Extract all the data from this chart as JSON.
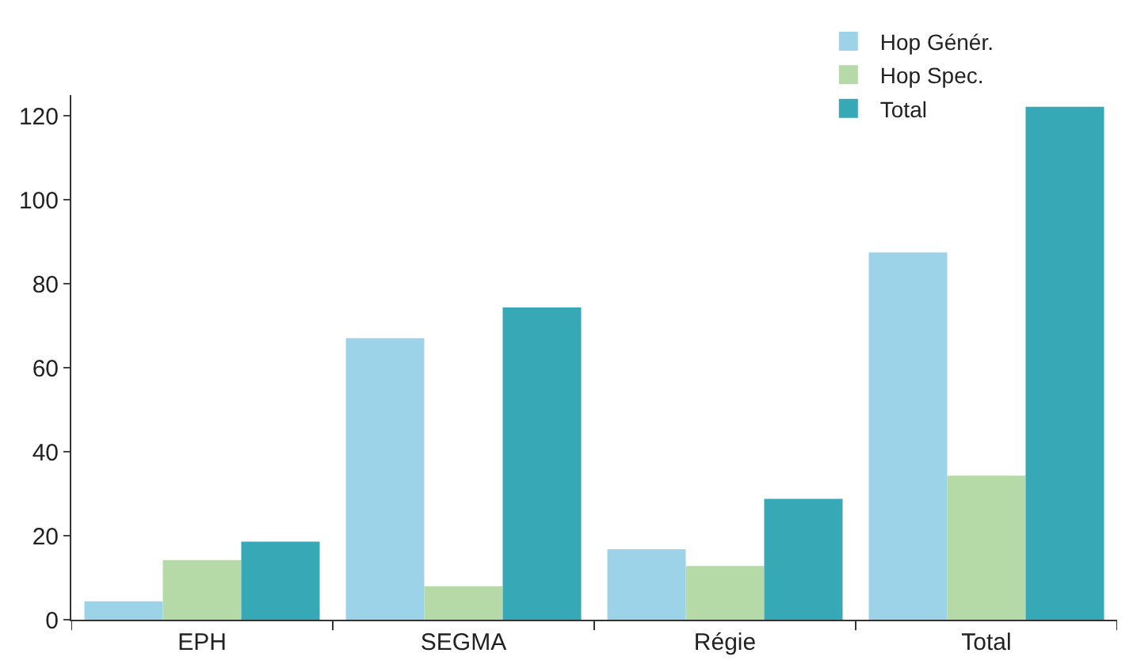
{
  "chart_data": {
    "type": "bar",
    "categories": [
      "EPH",
      "SEGMA",
      "Régie",
      "Total"
    ],
    "series": [
      {
        "name": "Hop Génér.",
        "color": "#9dd3e8",
        "values": [
          4.4,
          67.1,
          16.8,
          87.5
        ]
      },
      {
        "name": "Hop Spec.",
        "color": "#b5d9a7",
        "values": [
          14.2,
          8.0,
          12.8,
          34.3
        ]
      },
      {
        "name": "Total",
        "color": "#37a8b6",
        "values": [
          18.6,
          74.4,
          28.8,
          122.2
        ]
      }
    ],
    "ylim": [
      0,
      125
    ],
    "yticks": [
      0,
      20,
      40,
      60,
      80,
      100,
      120
    ],
    "legend": "top right"
  }
}
